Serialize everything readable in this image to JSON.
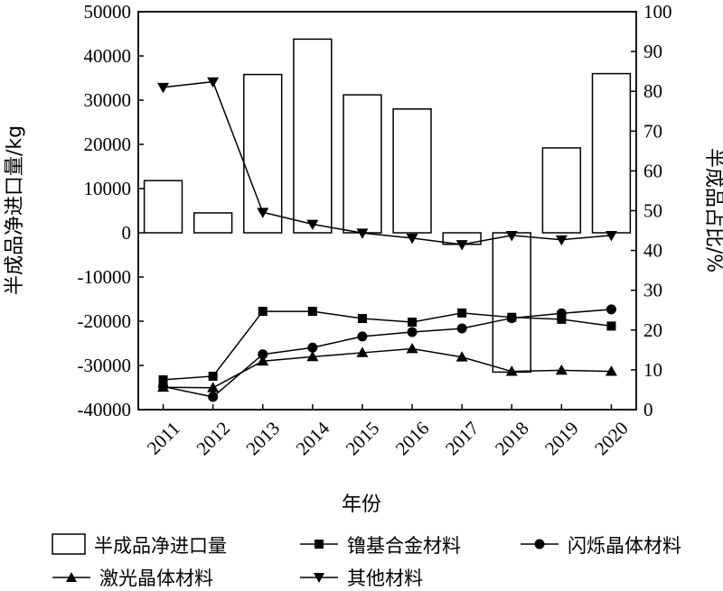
{
  "chart_data": {
    "type": "bar",
    "xlabel": "年份",
    "ylabel_left": "半成品净进口量/kg",
    "ylabel_right": "半成品占比/%",
    "categories": [
      "2011",
      "2012",
      "2013",
      "2014",
      "2015",
      "2016",
      "2017",
      "2018",
      "2019",
      "2020"
    ],
    "ylim_left": [
      -40000,
      50000
    ],
    "yticks_left": [
      -40000,
      -30000,
      -20000,
      -10000,
      0,
      10000,
      20000,
      30000,
      40000,
      50000
    ],
    "ylim_right": [
      0,
      100
    ],
    "yticks_right": [
      0,
      10,
      20,
      30,
      40,
      50,
      60,
      70,
      80,
      90,
      100
    ],
    "grid": false,
    "legend_position": "bottom",
    "bar_series": {
      "name": "半成品净进口量",
      "axis": "left",
      "values": [
        11800,
        4500,
        35800,
        43800,
        31200,
        28000,
        -2600,
        -31500,
        19200,
        36000
      ]
    },
    "line_series": [
      {
        "name": "镥基合金材料",
        "marker": "square",
        "axis": "right",
        "values": [
          7.5,
          8.4,
          24.7,
          24.7,
          22.9,
          22.0,
          24.3,
          23.2,
          22.7,
          21.0
        ]
      },
      {
        "name": "闪烁晶体材料",
        "marker": "circle",
        "axis": "right",
        "values": [
          5.8,
          3.2,
          13.9,
          15.6,
          18.4,
          19.5,
          20.4,
          23.0,
          24.2,
          25.2
        ]
      },
      {
        "name": "激光晶体材料",
        "marker": "triangle-up",
        "axis": "right",
        "values": [
          5.6,
          5.5,
          12.2,
          13.3,
          14.3,
          15.3,
          13.2,
          9.6,
          9.9,
          9.6
        ]
      },
      {
        "name": "其他材料",
        "marker": "triangle-down",
        "axis": "right",
        "values": [
          81.0,
          82.4,
          49.6,
          46.6,
          44.4,
          43.1,
          41.5,
          43.8,
          42.7,
          43.8
        ]
      }
    ]
  }
}
